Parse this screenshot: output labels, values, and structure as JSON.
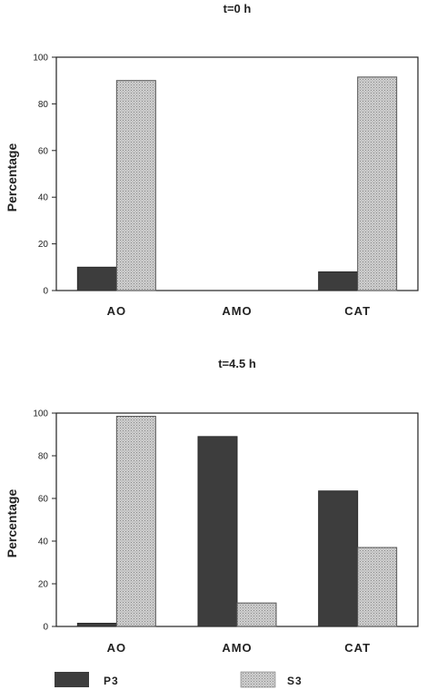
{
  "chart_data": [
    {
      "type": "bar",
      "title": "t=0 h",
      "ylabel": "Percentage",
      "xlabel": "",
      "ylim": [
        0,
        100
      ],
      "yticks": [
        0,
        20,
        40,
        60,
        80,
        100
      ],
      "categories": [
        "AO",
        "AMO",
        "CAT"
      ],
      "series": [
        {
          "name": "P3",
          "values": [
            10,
            0,
            8
          ]
        },
        {
          "name": "S3",
          "values": [
            90,
            0,
            91.5
          ]
        }
      ]
    },
    {
      "type": "bar",
      "title": "t=4.5 h",
      "ylabel": "Percentage",
      "xlabel": "",
      "ylim": [
        0,
        100
      ],
      "yticks": [
        0,
        20,
        40,
        60,
        80,
        100
      ],
      "categories": [
        "AO",
        "AMO",
        "CAT"
      ],
      "series": [
        {
          "name": "P3",
          "values": [
            1.5,
            89,
            63.5
          ]
        },
        {
          "name": "S3",
          "values": [
            98.5,
            11,
            37
          ]
        }
      ]
    }
  ],
  "legend": {
    "position": "bottom",
    "items": [
      {
        "name": "P3",
        "color": "#3d3d3d"
      },
      {
        "name": "S3",
        "color": "#bdbdbd"
      }
    ]
  }
}
